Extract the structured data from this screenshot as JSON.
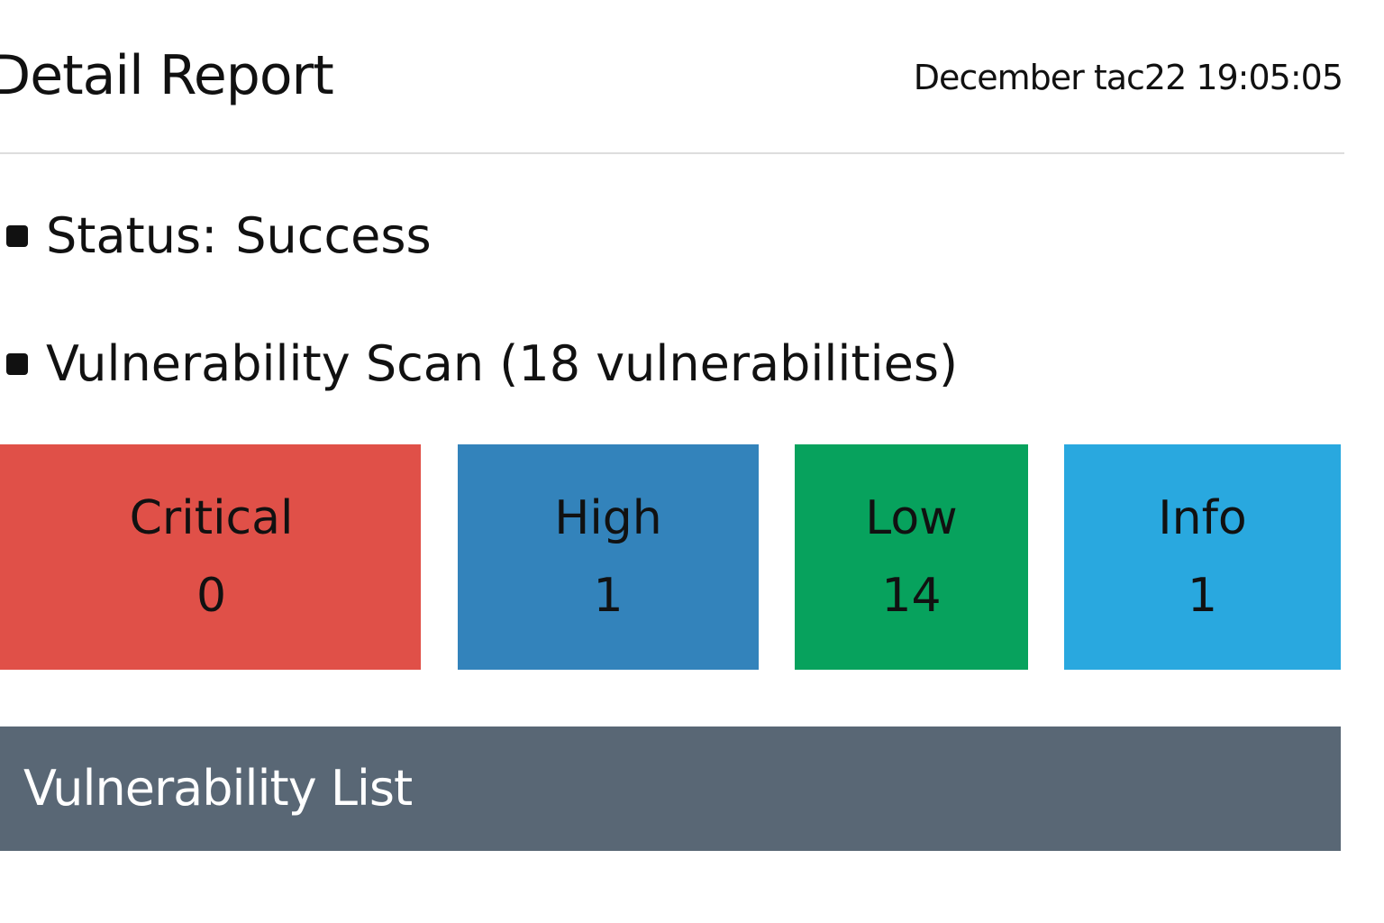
{
  "header": {
    "title": "Detail Report",
    "date": "December tac22 19:05:05"
  },
  "summary": {
    "status_label": "Status:",
    "status_value": "Success",
    "scan_text": "Vulnerability Scan (18 vulnerabilities)"
  },
  "severity_cards": [
    {
      "label": "Critical",
      "count": "0",
      "color": "#e05048"
    },
    {
      "label": "High",
      "count": "1",
      "color": "#3383bb"
    },
    {
      "label": "Low",
      "count": "14",
      "color": "#07a25d"
    },
    {
      "label": "Info",
      "count": "1",
      "color": "#29a8df"
    }
  ],
  "vulnerability_list": {
    "title": "Vulnerability List",
    "color": "#596775"
  },
  "icons": {
    "bullet": "square-bullet-icon"
  }
}
